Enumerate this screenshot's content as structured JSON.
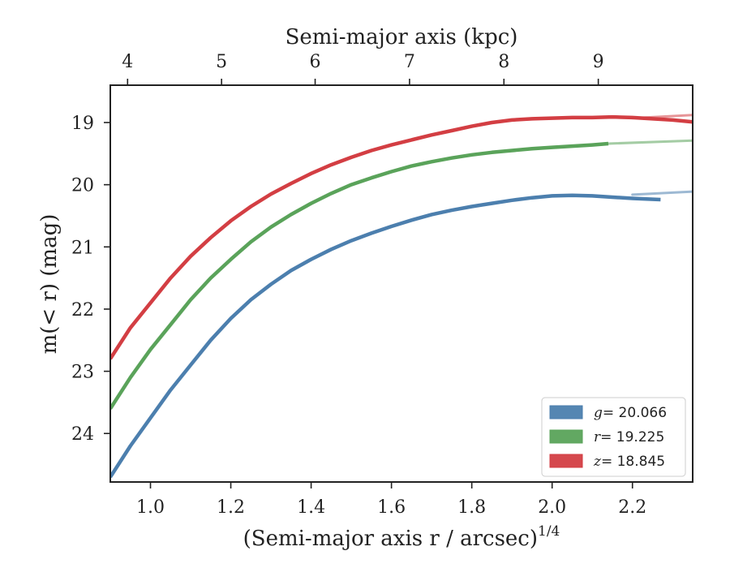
{
  "chart_data": {
    "type": "line",
    "title": "",
    "xlabel": "(Semi-major axis r / arcsec)",
    "xlabel_exponent": "1/4",
    "top_xlabel": "Semi-major axis (kpc)",
    "ylabel": "m(< r) (mag)",
    "xlim": [
      0.9,
      2.35
    ],
    "ylim": [
      24.78,
      18.4
    ],
    "y_inverted": true,
    "x_ticks": [
      1.0,
      1.2,
      1.4,
      1.6,
      1.8,
      2.0,
      2.2
    ],
    "x_tick_labels": [
      "1.0",
      "1.2",
      "1.4",
      "1.6",
      "1.8",
      "2.0",
      "2.2"
    ],
    "y_ticks": [
      19,
      20,
      21,
      22,
      23,
      24
    ],
    "y_tick_labels": [
      "19",
      "20",
      "21",
      "22",
      "23",
      "24"
    ],
    "top_ticks": [
      4,
      5,
      6,
      7,
      8,
      9
    ],
    "top_tick_positions_x": [
      0.943,
      1.177,
      1.41,
      1.645,
      1.88,
      2.115
    ],
    "top_tick_labels": [
      "4",
      "5",
      "6",
      "7",
      "8",
      "9"
    ],
    "legend_position": "lower-right",
    "grid": false,
    "series": [
      {
        "name": "g = 20.066",
        "legend_var": "g",
        "legend_value": "= 20.066",
        "color": "#4c7fae",
        "x": [
          0.9,
          0.95,
          1.0,
          1.05,
          1.1,
          1.15,
          1.2,
          1.25,
          1.3,
          1.35,
          1.4,
          1.45,
          1.5,
          1.55,
          1.6,
          1.65,
          1.7,
          1.75,
          1.8,
          1.85,
          1.9,
          1.95,
          2.0,
          2.05,
          2.1,
          2.15,
          2.2,
          2.27
        ],
        "y": [
          24.7,
          24.2,
          23.75,
          23.3,
          22.9,
          22.5,
          22.15,
          21.85,
          21.6,
          21.38,
          21.2,
          21.04,
          20.9,
          20.78,
          20.67,
          20.57,
          20.48,
          20.41,
          20.35,
          20.3,
          20.25,
          20.21,
          20.18,
          20.17,
          20.18,
          20.2,
          20.22,
          20.24
        ],
        "model_x": [
          2.2,
          2.35
        ],
        "model_y": [
          20.16,
          20.11
        ]
      },
      {
        "name": "r = 19.225",
        "legend_var": "r",
        "legend_value": "= 19.225",
        "color": "#5aa35a",
        "x": [
          0.9,
          0.95,
          1.0,
          1.05,
          1.1,
          1.15,
          1.2,
          1.25,
          1.3,
          1.35,
          1.4,
          1.45,
          1.5,
          1.55,
          1.6,
          1.65,
          1.7,
          1.75,
          1.8,
          1.85,
          1.9,
          1.95,
          2.0,
          2.05,
          2.1,
          2.14
        ],
        "y": [
          23.6,
          23.1,
          22.65,
          22.25,
          21.85,
          21.5,
          21.2,
          20.92,
          20.68,
          20.48,
          20.3,
          20.14,
          20.0,
          19.89,
          19.79,
          19.7,
          19.63,
          19.57,
          19.52,
          19.48,
          19.45,
          19.42,
          19.4,
          19.38,
          19.36,
          19.34
        ],
        "model_x": [
          2.14,
          2.35
        ],
        "model_y": [
          19.34,
          19.29
        ]
      },
      {
        "name": "z = 18.845",
        "legend_var": "z",
        "legend_value": "= 18.845",
        "color": "#d33e43",
        "x": [
          0.9,
          0.95,
          1.0,
          1.05,
          1.1,
          1.15,
          1.2,
          1.25,
          1.3,
          1.35,
          1.4,
          1.45,
          1.5,
          1.55,
          1.6,
          1.65,
          1.7,
          1.75,
          1.8,
          1.85,
          1.9,
          1.95,
          2.0,
          2.05,
          2.1,
          2.15,
          2.2,
          2.25,
          2.3,
          2.35
        ],
        "y": [
          22.8,
          22.3,
          21.9,
          21.5,
          21.15,
          20.85,
          20.58,
          20.35,
          20.15,
          19.98,
          19.82,
          19.68,
          19.56,
          19.45,
          19.36,
          19.28,
          19.2,
          19.13,
          19.06,
          19.0,
          18.96,
          18.94,
          18.93,
          18.92,
          18.92,
          18.91,
          18.92,
          18.94,
          18.96,
          18.99
        ],
        "model_x": [
          2.2,
          2.35
        ],
        "model_y": [
          18.93,
          18.88
        ]
      }
    ]
  }
}
